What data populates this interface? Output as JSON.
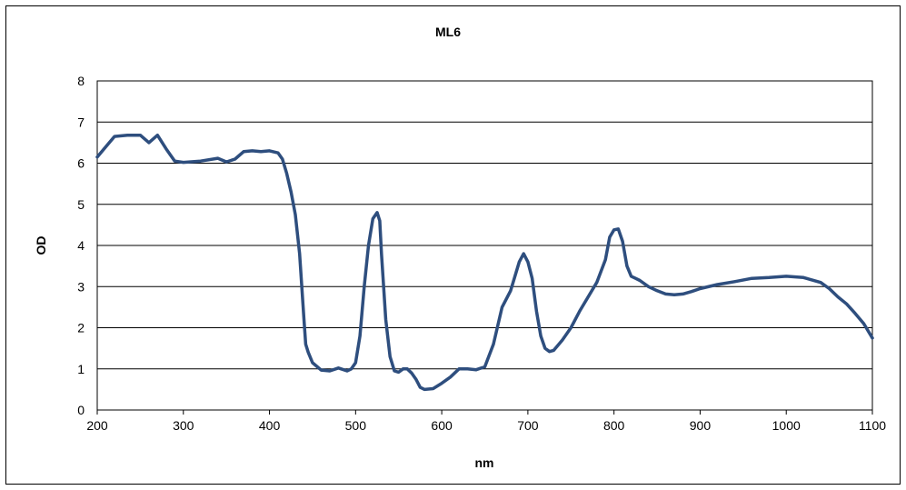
{
  "chart_data": {
    "type": "line",
    "title": "ML6",
    "xlabel": "nm",
    "ylabel": "OD",
    "xlim": [
      200,
      1100
    ],
    "ylim": [
      0,
      8
    ],
    "x_ticks": [
      200,
      300,
      400,
      500,
      600,
      700,
      800,
      900,
      1000,
      1100
    ],
    "y_ticks": [
      0,
      1,
      2,
      3,
      4,
      5,
      6,
      7,
      8
    ],
    "grid": "horizontal",
    "legend": "none",
    "colors": {
      "series": "#2E4E7E",
      "grid": "#000000",
      "plot_border": "#000000"
    },
    "series": [
      {
        "x": [
          200,
          210,
          220,
          235,
          250,
          260,
          270,
          280,
          290,
          300,
          320,
          340,
          350,
          360,
          370,
          380,
          390,
          400,
          410,
          415,
          420,
          425,
          430,
          435,
          440,
          442,
          445,
          450,
          460,
          470,
          480,
          490,
          495,
          500,
          505,
          510,
          515,
          520,
          525,
          528,
          530,
          535,
          540,
          545,
          550,
          555,
          560,
          565,
          570,
          575,
          580,
          590,
          600,
          610,
          620,
          630,
          640,
          650,
          660,
          670,
          680,
          690,
          695,
          700,
          705,
          710,
          715,
          720,
          725,
          730,
          740,
          750,
          760,
          770,
          780,
          790,
          795,
          800,
          805,
          810,
          815,
          820,
          825,
          830,
          840,
          850,
          860,
          870,
          880,
          890,
          900,
          920,
          940,
          960,
          980,
          1000,
          1020,
          1040,
          1050,
          1060,
          1070,
          1080,
          1090,
          1100
        ],
        "y": [
          6.15,
          6.4,
          6.65,
          6.68,
          6.68,
          6.5,
          6.68,
          6.35,
          6.05,
          6.02,
          6.05,
          6.12,
          6.03,
          6.1,
          6.28,
          6.3,
          6.28,
          6.3,
          6.25,
          6.1,
          5.75,
          5.3,
          4.75,
          3.8,
          2.2,
          1.6,
          1.4,
          1.15,
          0.97,
          0.95,
          1.02,
          0.95,
          1.0,
          1.15,
          1.8,
          3.0,
          4.0,
          4.65,
          4.8,
          4.6,
          3.8,
          2.2,
          1.3,
          0.95,
          0.92,
          1.0,
          1.0,
          0.9,
          0.75,
          0.55,
          0.5,
          0.52,
          0.65,
          0.8,
          1.0,
          1.0,
          0.98,
          1.05,
          1.6,
          2.5,
          2.9,
          3.6,
          3.8,
          3.6,
          3.2,
          2.4,
          1.8,
          1.5,
          1.42,
          1.45,
          1.7,
          2.0,
          2.4,
          2.75,
          3.1,
          3.65,
          4.2,
          4.38,
          4.4,
          4.1,
          3.5,
          3.25,
          3.2,
          3.15,
          3.0,
          2.9,
          2.82,
          2.8,
          2.82,
          2.88,
          2.95,
          3.05,
          3.12,
          3.2,
          3.22,
          3.25,
          3.22,
          3.1,
          2.95,
          2.75,
          2.58,
          2.35,
          2.1,
          1.75
        ]
      }
    ]
  }
}
